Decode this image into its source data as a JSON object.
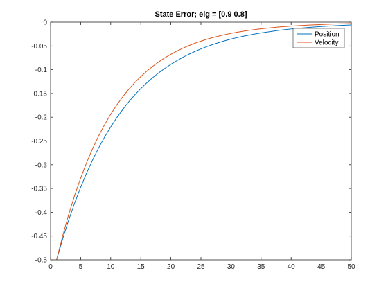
{
  "chart_data": {
    "type": "line",
    "title": "State Error; eig = [0.9 0.8]",
    "xlabel": "",
    "ylabel": "",
    "xlim": [
      0,
      50
    ],
    "ylim": [
      -0.5,
      0
    ],
    "xticks": [
      0,
      5,
      10,
      15,
      20,
      25,
      30,
      35,
      40,
      45,
      50
    ],
    "xtick_labels": [
      "0",
      "5",
      "10",
      "15",
      "20",
      "25",
      "30",
      "35",
      "40",
      "45",
      "50"
    ],
    "yticks": [
      0,
      -0.05,
      -0.1,
      -0.15,
      -0.2,
      -0.25,
      -0.3,
      -0.35,
      -0.4,
      -0.45,
      -0.5
    ],
    "ytick_labels": [
      "0",
      "-0.05",
      "-0.1",
      "-0.15",
      "-0.2",
      "-0.25",
      "-0.3",
      "-0.35",
      "-0.4",
      "-0.45",
      "-0.5"
    ],
    "grid": false,
    "legend_position": "top-right",
    "series": [
      {
        "name": "Position",
        "color": "#0072BD",
        "x": [
          1,
          2,
          3,
          4,
          5,
          6,
          7,
          8,
          9,
          10,
          11,
          12,
          13,
          14,
          15,
          16,
          17,
          18,
          19,
          20,
          21,
          22,
          23,
          24,
          25,
          26,
          27,
          28,
          29,
          30,
          31,
          32,
          33,
          34,
          35,
          36,
          37,
          38,
          39,
          40,
          41,
          42,
          43,
          44,
          45,
          46,
          47,
          48,
          49,
          50
        ],
        "y": [
          -0.5,
          -0.4565,
          -0.4168,
          -0.3805,
          -0.3474,
          -0.3171,
          -0.2895,
          -0.2643,
          -0.2413,
          -0.2203,
          -0.2011,
          -0.1836,
          -0.1676,
          -0.153,
          -0.1397,
          -0.1276,
          -0.1165,
          -0.1063,
          -0.0971,
          -0.0886,
          -0.0809,
          -0.0739,
          -0.0674,
          -0.0616,
          -0.0562,
          -0.0513,
          -0.0468,
          -0.0428,
          -0.039,
          -0.0356,
          -0.0325,
          -0.0297,
          -0.0271,
          -0.0248,
          -0.0226,
          -0.0207,
          -0.0189,
          -0.0172,
          -0.0157,
          -0.0143,
          -0.0131,
          -0.012,
          -0.0109,
          -0.01,
          -0.0091,
          -0.0083,
          -0.0076,
          -0.0069,
          -0.0063,
          -0.0058
        ]
      },
      {
        "name": "Velocity",
        "color": "#D95319",
        "x": [
          1,
          2,
          3,
          4,
          5,
          6,
          7,
          8,
          9,
          10,
          11,
          12,
          13,
          14,
          15,
          16,
          17,
          18,
          19,
          20,
          21,
          22,
          23,
          24,
          25,
          26,
          27,
          28,
          29,
          30,
          31,
          32,
          33,
          34,
          35,
          36,
          37,
          38,
          39,
          40,
          41,
          42,
          43,
          44,
          45,
          46,
          47,
          48,
          49,
          50
        ],
        "y": [
          -0.5,
          -0.45,
          -0.405,
          -0.3645,
          -0.3281,
          -0.2952,
          -0.2657,
          -0.2391,
          -0.2152,
          -0.1937,
          -0.1743,
          -0.1569,
          -0.1412,
          -0.1271,
          -0.1144,
          -0.1029,
          -0.0927,
          -0.0834,
          -0.075,
          -0.0675,
          -0.0608,
          -0.0547,
          -0.0492,
          -0.0443,
          -0.0399,
          -0.0359,
          -0.0323,
          -0.0291,
          -0.0262,
          -0.0236,
          -0.0212,
          -0.0191,
          -0.0172,
          -0.0155,
          -0.0139,
          -0.0125,
          -0.0113,
          -0.0101,
          -0.0091,
          -0.0082,
          -0.0074,
          -0.0067,
          -0.006,
          -0.0054,
          -0.0049,
          -0.0044,
          -0.0039,
          -0.0035,
          -0.0032,
          -0.0029
        ]
      }
    ]
  }
}
